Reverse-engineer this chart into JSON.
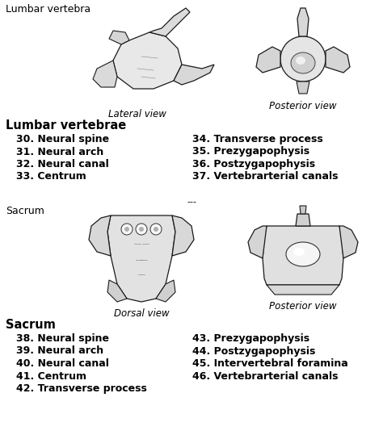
{
  "bg_color": "#ffffff",
  "fig_title": "Lumbar vertebra",
  "section1_label": "Lumbar vertebrae",
  "section2_label": "Sacrum",
  "lateral_view_label": "Lateral view",
  "posterior_view_label1": "Posterior view",
  "dorsal_view_label": "Dorsal view",
  "posterior_view_label2": "Posterior view",
  "separator": "---",
  "lumbar_left": [
    "30. Neural spine",
    "31. Neural arch",
    "32. Neural canal",
    "33. Centrum"
  ],
  "lumbar_right": [
    "34. Transverse process",
    "35. Prezygapophysis",
    "36. Postzygapophysis",
    "37. Vertebrarterial canals"
  ],
  "sacrum_left": [
    "38. Neural spine",
    "39. Neural arch",
    "40. Neural canal",
    "41. Centrum",
    "42. Transverse process"
  ],
  "sacrum_right": [
    "43. Prezygapophysis",
    "44. Postzygapophysis",
    "45. Intervertebral foramina",
    "46. Vertebrarterial canals"
  ],
  "text_color": "#000000",
  "header_fontsize": 10.5,
  "item_fontsize": 9.0,
  "view_label_fontsize": 8.5,
  "fig_title_fontsize": 9.0,
  "section_header_fontsize": 10.5
}
